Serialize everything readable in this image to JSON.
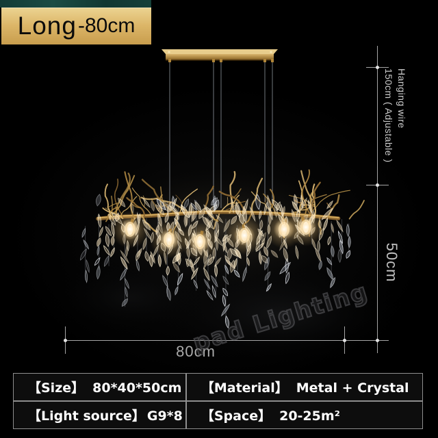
{
  "badge": {
    "series": "Long",
    "size": "-80cm"
  },
  "annotations": {
    "hanging_wire": {
      "line1": "Hanging wire",
      "line2": "150cm ( Adjustable )"
    },
    "height": "50cm",
    "width": "80cm"
  },
  "watermark": {
    "text": "pad Lighting"
  },
  "spec_table": {
    "size": {
      "key": "【Size】",
      "value": "80*40*50cm"
    },
    "material": {
      "key": "【Material】",
      "value": "Metal + Crystal"
    },
    "light_source": {
      "key": "【Light source】",
      "value": "G9*8"
    },
    "space": {
      "key": "【Space】",
      "value": "20-25m²"
    }
  },
  "colors": {
    "background": "#000000",
    "badge_gold": "#d8ad5c",
    "badge_strip_teal": "#17433c",
    "dimension_gray": "#a6a6a6",
    "table_border": "#8f8f8f",
    "table_text": "#ffffff",
    "metal_gold": "#b68c47",
    "bulb_glow": "#ffe8b8"
  },
  "icons": {
    "product": "crystal-branch-chandelier"
  }
}
